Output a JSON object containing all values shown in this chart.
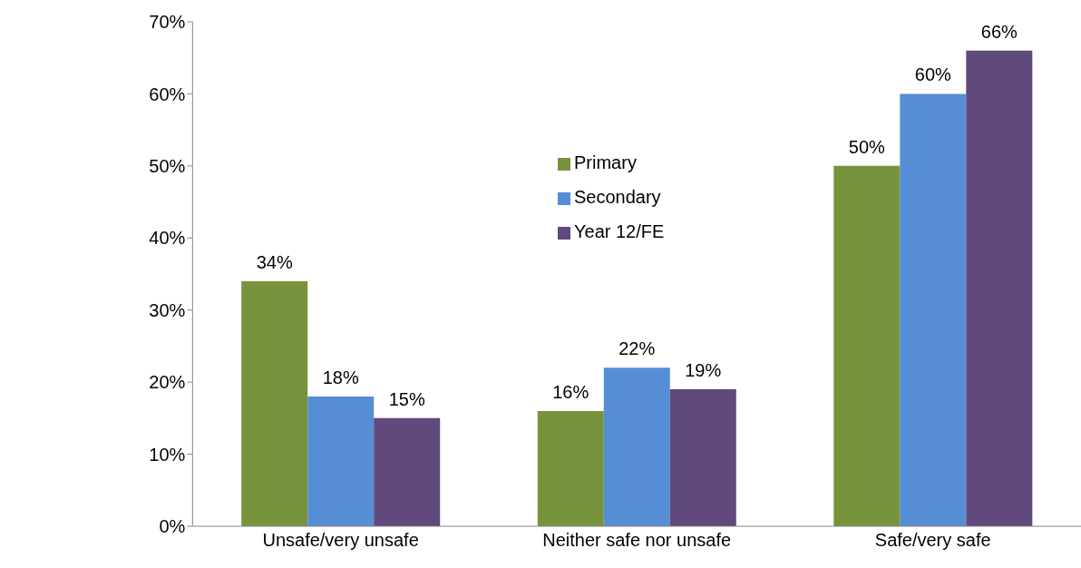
{
  "chart_data": {
    "type": "bar",
    "categories": [
      "Unsafe/very unsafe",
      "Neither safe nor unsafe",
      "Safe/very safe"
    ],
    "series": [
      {
        "name": "Primary",
        "color": "#77933c",
        "values": [
          34,
          16,
          50
        ],
        "value_labels": [
          "34%",
          "16%",
          "50%"
        ]
      },
      {
        "name": "Secondary",
        "color": "#558ed5",
        "values": [
          18,
          22,
          60
        ],
        "value_labels": [
          "18%",
          "22%",
          "60%"
        ]
      },
      {
        "name": "Year 12/FE",
        "color": "#604a7b",
        "values": [
          15,
          19,
          66
        ],
        "value_labels": [
          "15%",
          "19%",
          "66%"
        ]
      }
    ],
    "ylim": [
      0,
      70
    ],
    "yticks": [
      {
        "value": 0,
        "label": "0%"
      },
      {
        "value": 10,
        "label": "10%"
      },
      {
        "value": 20,
        "label": "20%"
      },
      {
        "value": 30,
        "label": "30%"
      },
      {
        "value": 40,
        "label": "40%"
      },
      {
        "value": 50,
        "label": "50%"
      },
      {
        "value": 60,
        "label": "60%"
      },
      {
        "value": 70,
        "label": "70%"
      }
    ],
    "grid": false,
    "legend": "top"
  }
}
